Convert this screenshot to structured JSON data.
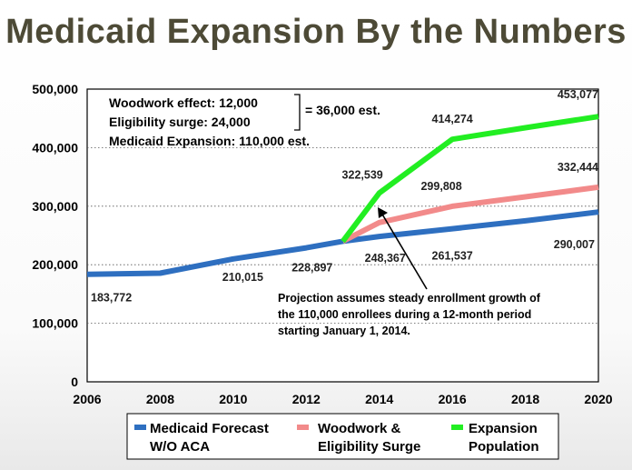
{
  "slide": {
    "title": "Medicaid Expansion By the Numbers"
  },
  "chart_data": {
    "type": "line",
    "title": "Medicaid Expansion By the Numbers",
    "x": [
      2006,
      2008,
      2010,
      2012,
      2014,
      2016,
      2018,
      2020
    ],
    "xlim": [
      2006,
      2020
    ],
    "ylim": [
      0,
      500000
    ],
    "x_ticks": [
      "2006",
      "2008",
      "2010",
      "2012",
      "2014",
      "2016",
      "2018",
      "2020"
    ],
    "y_ticks": [
      "0",
      "100,000",
      "200,000",
      "300,000",
      "400,000",
      "500,000"
    ],
    "grid": "horizontal dotted",
    "series": [
      {
        "name": "Medicaid Forecast W/O ACA",
        "legend_lines": [
          "Medicaid Forecast",
          "W/O ACA"
        ],
        "color": "#2e6fc0",
        "points": [
          [
            2006,
            183772
          ],
          [
            2008,
            185500
          ],
          [
            2010,
            210015
          ],
          [
            2012,
            228897
          ],
          [
            2013,
            240000
          ],
          [
            2014,
            248367
          ],
          [
            2016,
            261537
          ],
          [
            2018,
            275000
          ],
          [
            2020,
            290007
          ]
        ]
      },
      {
        "name": "Woodwork & Eligibility Surge",
        "legend_lines": [
          "Woodwork &",
          "Eligibility Surge"
        ],
        "color": "#f28a8a",
        "points": [
          [
            2013,
            240000
          ],
          [
            2014,
            272000
          ],
          [
            2016,
            299808
          ],
          [
            2018,
            316000
          ],
          [
            2020,
            332444
          ]
        ]
      },
      {
        "name": "Expansion Population",
        "legend_lines": [
          "Expansion",
          "Population"
        ],
        "color": "#22ee22",
        "points": [
          [
            2013,
            240000
          ],
          [
            2014,
            322539
          ],
          [
            2016,
            414274
          ],
          [
            2018,
            434000
          ],
          [
            2020,
            453077
          ]
        ]
      }
    ],
    "data_labels": [
      {
        "text": "183,772",
        "x": 2006.1,
        "y": 183772,
        "dy": 30,
        "anchor": "start"
      },
      {
        "text": "210,015",
        "x": 2009.7,
        "y": 210015,
        "dy": 24,
        "anchor": "start"
      },
      {
        "text": "228,897",
        "x": 2011.6,
        "y": 228897,
        "dy": 26,
        "anchor": "start"
      },
      {
        "text": "248,367",
        "x": 2013.6,
        "y": 248367,
        "dy": 28,
        "anchor": "start"
      },
      {
        "text": "261,537",
        "x": 2016.0,
        "y": 261537,
        "dy": 34,
        "anchor": "middle"
      },
      {
        "text": "290,007",
        "x": 2019.9,
        "y": 290007,
        "dy": 40,
        "anchor": "end"
      },
      {
        "text": "322,539",
        "x": 2014.1,
        "y": 322539,
        "dy": -16,
        "anchor": "end"
      },
      {
        "text": "299,808",
        "x": 2015.7,
        "y": 299808,
        "dy": -18,
        "anchor": "middle"
      },
      {
        "text": "414,274",
        "x": 2016.0,
        "y": 414274,
        "dy": -18,
        "anchor": "middle"
      },
      {
        "text": "332,444",
        "x": 2020.0,
        "y": 332444,
        "dy": -18,
        "anchor": "end"
      },
      {
        "text": "453,077",
        "x": 2020.0,
        "y": 453077,
        "dy": -20,
        "anchor": "end"
      }
    ],
    "annotations": {
      "woodwork": "Woodwork effect: 12,000",
      "eligibility": "Eligibility surge:   24,000",
      "sum": "= 36,000 est.",
      "expansion": "Medicaid Expansion: 110,000 est.",
      "projection_lines": [
        "Projection assumes steady enrollment growth of",
        "the 110,000 enrollees during a 12-month period",
        "starting January 1, 2014."
      ]
    }
  }
}
